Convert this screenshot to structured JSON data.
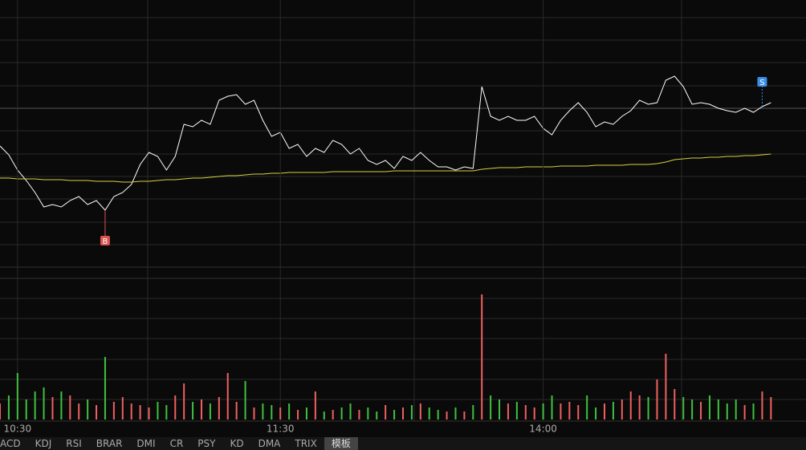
{
  "chart_data": [
    {
      "type": "line",
      "xlim": [
        0,
        92
      ],
      "ylim": [
        0,
        333
      ],
      "series": [
        {
          "color": "#ffffff",
          "values": [
            151,
            140,
            121,
            108,
            93,
            75,
            78,
            75,
            83,
            88,
            78,
            83,
            71,
            88,
            93,
            103,
            128,
            143,
            138,
            121,
            138,
            178,
            175,
            183,
            178,
            208,
            213,
            215,
            203,
            208,
            183,
            163,
            168,
            148,
            153,
            138,
            148,
            143,
            158,
            153,
            141,
            148,
            133,
            128,
            133,
            123,
            138,
            133,
            143,
            133,
            125,
            125,
            121,
            125,
            123,
            225,
            188,
            183,
            188,
            183,
            183,
            188,
            173,
            165,
            183,
            195,
            205,
            193,
            175,
            181,
            178,
            188,
            195,
            208,
            203,
            205,
            233,
            238,
            225,
            203,
            205,
            203,
            198,
            195,
            193,
            198,
            193,
            200,
            205
          ]
        },
        {
          "color": "#d8d040",
          "values": [
            111,
            111,
            110,
            110,
            110,
            109,
            109,
            109,
            108,
            108,
            108,
            107,
            107,
            107,
            106,
            106,
            107,
            107,
            108,
            109,
            109,
            110,
            111,
            111,
            112,
            113,
            114,
            114,
            115,
            116,
            116,
            117,
            117,
            118,
            118,
            118,
            118,
            118,
            119,
            119,
            119,
            119,
            119,
            119,
            119,
            120,
            120,
            120,
            120,
            120,
            120,
            120,
            120,
            120,
            120,
            122,
            123,
            124,
            124,
            124,
            125,
            125,
            125,
            125,
            126,
            126,
            126,
            126,
            127,
            127,
            127,
            127,
            128,
            128,
            128,
            129,
            131,
            134,
            135,
            136,
            136,
            137,
            137,
            138,
            138,
            139,
            139,
            140,
            141
          ]
        }
      ],
      "annotations": [
        {
          "label": "B",
          "x": 12,
          "color": "#d9534f"
        },
        {
          "label": "S",
          "x": 87,
          "color": "#3a8ee6"
        }
      ]
    },
    {
      "type": "bar",
      "xlim": [
        0,
        92
      ],
      "ylim": [
        0,
        176
      ],
      "up_color": "#f06060",
      "down_color": "#40c040",
      "values": [
        20,
        30,
        58,
        25,
        35,
        40,
        28,
        35,
        30,
        20,
        25,
        18,
        78,
        22,
        28,
        20,
        18,
        15,
        22,
        18,
        30,
        45,
        22,
        25,
        20,
        28,
        58,
        22,
        48,
        15,
        20,
        18,
        15,
        20,
        12,
        15,
        35,
        10,
        12,
        15,
        20,
        12,
        15,
        10,
        18,
        12,
        15,
        18,
        20,
        15,
        12,
        10,
        15,
        10,
        18,
        156,
        30,
        25,
        20,
        22,
        18,
        15,
        20,
        30,
        20,
        22,
        18,
        30,
        15,
        20,
        22,
        25,
        35,
        30,
        28,
        50,
        82,
        38,
        28,
        25,
        22,
        30,
        25,
        20,
        25,
        18,
        20,
        35,
        28
      ],
      "xticks": [
        {
          "value": 2,
          "label": "10:30"
        },
        {
          "value": 32,
          "label": "11:30"
        },
        {
          "value": 62,
          "label": "14:00"
        }
      ]
    }
  ],
  "tabs": [
    "ACD",
    "KDJ",
    "RSI",
    "BRAR",
    "DMI",
    "CR",
    "PSY",
    "KD",
    "DMA",
    "TRIX",
    "模板"
  ],
  "active_tab": 10
}
